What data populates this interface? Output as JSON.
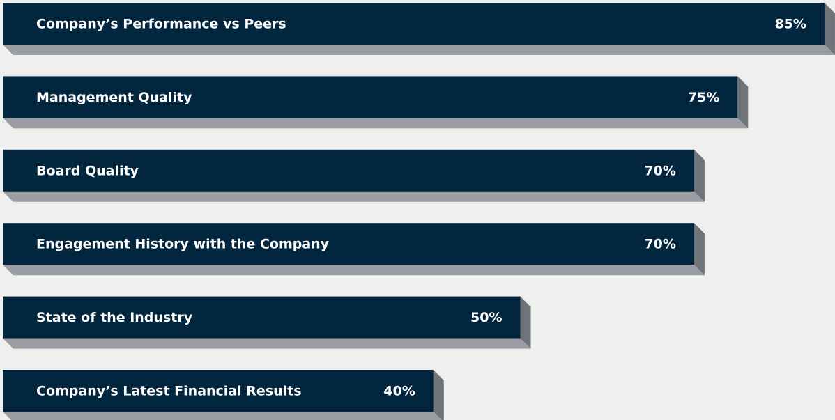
{
  "chart_data": {
    "type": "bar",
    "orientation": "horizontal",
    "categories": [
      "Company’s Performance vs Peers",
      "Management Quality",
      "Board Quality",
      "Engagement History with the Company",
      "State of the Industry",
      "Company’s Latest Financial Results"
    ],
    "values": [
      85,
      75,
      70,
      70,
      50,
      40
    ],
    "value_labels": [
      "85%",
      "75%",
      "70%",
      "70%",
      "50%",
      "40%"
    ],
    "color": "#02263d"
  }
}
